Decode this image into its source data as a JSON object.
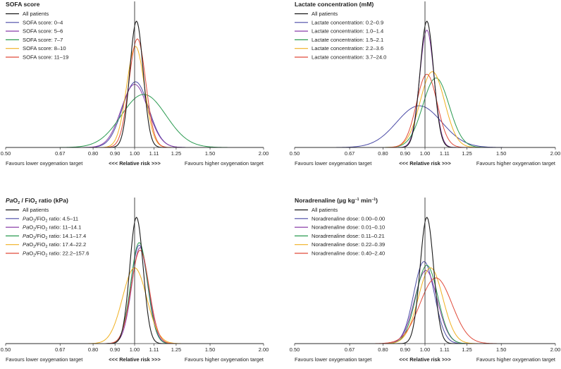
{
  "chart_data": [
    {
      "type": "line",
      "title": "SOFA score",
      "xscale": "log",
      "xlim": [
        0.5,
        2.0
      ],
      "xticks": [
        "0.50",
        "0.67",
        "0.80",
        "0.90",
        "1.00",
        "1.11",
        "1.25",
        "1.50",
        "2.00"
      ],
      "xlabel": {
        "left": "Favours lower oxygenation target",
        "center": "<<< Relative risk >>>",
        "right": "Favours higher oxygenation target"
      },
      "grid": false,
      "legend": "top-left",
      "reference_line": 1.0,
      "series": [
        {
          "name": "All patients",
          "color": "#1a1a1a",
          "mean": 1.01,
          "sd_log": 0.036,
          "peak": 1.0
        },
        {
          "name": "SOFA score: 0–4",
          "color": "#4a4aa6",
          "mean": 1.005,
          "sd_log": 0.07,
          "peak": 0.52
        },
        {
          "name": "SOFA score: 5–6",
          "color": "#8a3fa8",
          "mean": 1.0,
          "sd_log": 0.072,
          "peak": 0.5
        },
        {
          "name": "SOFA score: 7–7",
          "color": "#2a9a50",
          "mean": 1.05,
          "sd_log": 0.12,
          "peak": 0.42
        },
        {
          "name": "SOFA score: 8–10",
          "color": "#f0b020",
          "mean": 1.005,
          "sd_log": 0.048,
          "peak": 0.8
        },
        {
          "name": "SOFA score: 11–19",
          "color": "#e04a3a",
          "mean": 1.015,
          "sd_log": 0.045,
          "peak": 0.86
        }
      ]
    },
    {
      "type": "line",
      "title": "Lactate concentration (mM)",
      "xscale": "log",
      "xlim": [
        0.5,
        2.0
      ],
      "xticks": [
        "0.50",
        "0.67",
        "0.80",
        "0.90",
        "1.00",
        "1.11",
        "1.25",
        "1.50",
        "2.00"
      ],
      "xlabel": {
        "left": "Favours lower oxygenation target",
        "center": "<<< Relative risk >>>",
        "right": "Favours higher oxygenation target"
      },
      "grid": false,
      "legend": "top-left",
      "reference_line": 1.0,
      "series": [
        {
          "name": "All patients",
          "color": "#1a1a1a",
          "mean": 1.01,
          "sd_log": 0.036,
          "peak": 1.0
        },
        {
          "name": "Lactate concentration: 0.2–0.9",
          "color": "#4a4aa6",
          "mean": 0.97,
          "sd_log": 0.12,
          "peak": 0.33
        },
        {
          "name": "Lactate concentration: 1.0–1.4",
          "color": "#8a3fa8",
          "mean": 1.01,
          "sd_log": 0.038,
          "peak": 0.93
        },
        {
          "name": "Lactate concentration: 1.5–2.1",
          "color": "#2a9a50",
          "mean": 1.06,
          "sd_log": 0.07,
          "peak": 0.55
        },
        {
          "name": "Lactate concentration: 2.2–3.6",
          "color": "#f0b020",
          "mean": 1.04,
          "sd_log": 0.065,
          "peak": 0.6
        },
        {
          "name": "Lactate concentration: 3.7–24.0",
          "color": "#e04a3a",
          "mean": 1.01,
          "sd_log": 0.055,
          "peak": 0.58
        }
      ]
    },
    {
      "type": "line",
      "title": "PaO2 / FiO2 ratio (kPa)",
      "xscale": "log",
      "xlim": [
        0.5,
        2.0
      ],
      "xticks": [
        "0.50",
        "0.67",
        "0.80",
        "0.90",
        "1.00",
        "1.11",
        "1.25",
        "1.50",
        "2.00"
      ],
      "xlabel": {
        "left": "Favours lower oxygenation target",
        "center": "<<< Relative risk >>>",
        "right": "Favours higher oxygenation target"
      },
      "grid": false,
      "legend": "top-left",
      "reference_line": 1.0,
      "series": [
        {
          "name": "All patients",
          "label_pre": "",
          "label_post": "",
          "color": "#1a1a1a",
          "mean": 1.01,
          "sd_log": 0.036,
          "peak": 1.0
        },
        {
          "name": "PaO2/FiO2 ratio: 4.5–11",
          "label_pre": "Pa",
          "label_mid": "O",
          "label_sub": "2",
          "label_mid2": "/FiO",
          "label_sub2": "2",
          "label_post": " ratio: 4.5–11",
          "color": "#4a4aa6",
          "mean": 1.025,
          "sd_log": 0.045,
          "peak": 0.78
        },
        {
          "name": "PaO2/FiO2 ratio: 11–14.1",
          "label_pre": "Pa",
          "label_mid": "O",
          "label_sub": "2",
          "label_mid2": "/FiO",
          "label_sub2": "2",
          "label_post": " ratio: 11–14.1",
          "color": "#8a3fa8",
          "mean": 1.03,
          "sd_log": 0.045,
          "peak": 0.76
        },
        {
          "name": "PaO2/FiO2 ratio: 14.1–17.4",
          "label_pre": "Pa",
          "label_mid": "O",
          "label_sub": "2",
          "label_mid2": "/FiO",
          "label_sub2": "2",
          "label_post": " ratio: 14.1–17.4",
          "color": "#2a9a50",
          "mean": 1.025,
          "sd_log": 0.045,
          "peak": 0.8
        },
        {
          "name": "PaO2/FiO2 ratio: 17.4–22.2",
          "label_pre": "Pa",
          "label_mid": "O",
          "label_sub": "2",
          "label_mid2": "/FiO",
          "label_sub2": "2",
          "label_post": " ratio: 17.4–22.2",
          "color": "#f0b020",
          "mean": 1.0,
          "sd_log": 0.065,
          "peak": 0.6
        },
        {
          "name": "PaO2/FiO2 ratio: 22.2–157.6",
          "label_pre": "Pa",
          "label_mid": "O",
          "label_sub": "2",
          "label_mid2": "/FiO",
          "label_sub2": "2",
          "label_post": " ratio: 22.2–157.6",
          "color": "#e04a3a",
          "mean": 1.03,
          "sd_log": 0.048,
          "peak": 0.74
        }
      ]
    },
    {
      "type": "line",
      "title": "Noradrenaline (µg kg−1 min−1)",
      "xscale": "log",
      "xlim": [
        0.5,
        2.0
      ],
      "xticks": [
        "0.50",
        "0.67",
        "0.80",
        "0.90",
        "1.00",
        "1.11",
        "1.25",
        "1.50",
        "2.00"
      ],
      "xlabel": {
        "left": "Favours lower oxygenation target",
        "center": "<<< Relative risk >>>",
        "right": "Favours higher oxygenation target"
      },
      "grid": false,
      "legend": "top-left",
      "reference_line": 1.0,
      "series": [
        {
          "name": "All patients",
          "color": "#1a1a1a",
          "mean": 1.01,
          "sd_log": 0.036,
          "peak": 1.0
        },
        {
          "name": "Noradrenaline dose: 0.00–0.00",
          "color": "#4a4aa6",
          "mean": 0.995,
          "sd_log": 0.055,
          "peak": 0.65
        },
        {
          "name": "Noradrenaline dose: 0.01–0.10",
          "color": "#8a3fa8",
          "mean": 1.005,
          "sd_log": 0.06,
          "peak": 0.58
        },
        {
          "name": "Noradrenaline dose: 0.11–0.21",
          "color": "#2a9a50",
          "mean": 1.01,
          "sd_log": 0.058,
          "peak": 0.62
        },
        {
          "name": "Noradrenaline dose: 0.22–0.39",
          "color": "#f0b020",
          "mean": 1.03,
          "sd_log": 0.065,
          "peak": 0.6
        },
        {
          "name": "Noradrenaline dose: 0.40–2.40",
          "color": "#e04a3a",
          "mean": 1.06,
          "sd_log": 0.085,
          "peak": 0.52
        }
      ]
    }
  ]
}
